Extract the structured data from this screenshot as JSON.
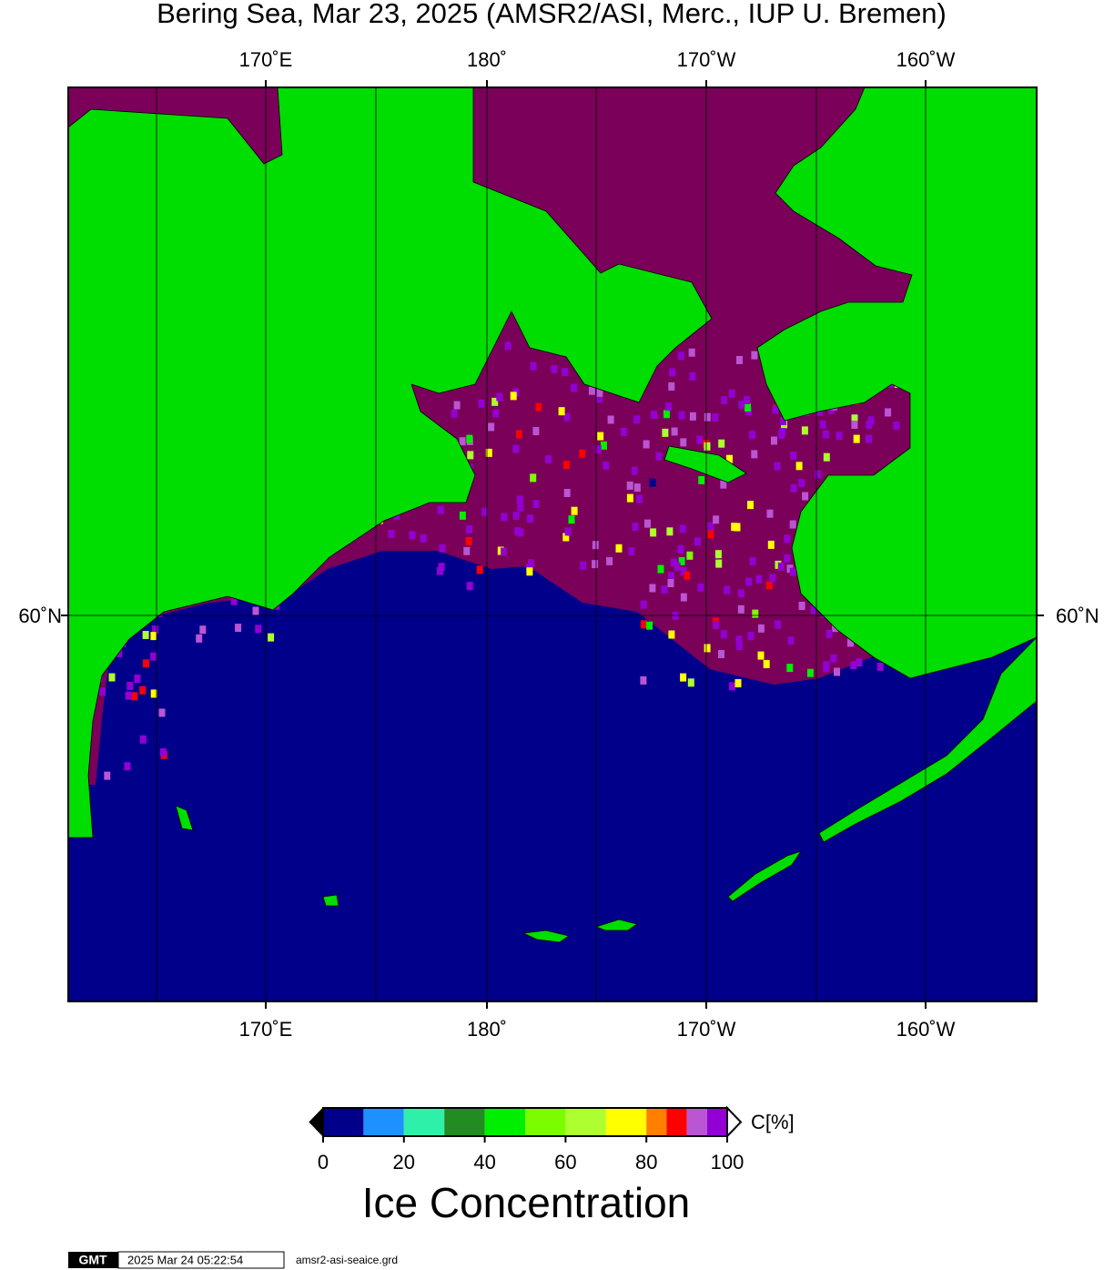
{
  "title": "Bering Sea, Mar 23, 2025 (AMSR2/ASI, Merc., IUP U. Bremen)",
  "longitude_labels": [
    "170˚E",
    "180˚",
    "170˚W",
    "160˚W"
  ],
  "latitude_labels": [
    "60˚N"
  ],
  "colorbar": {
    "unit": "C[%]",
    "range": [
      0,
      100
    ],
    "ticks": [
      0,
      20,
      40,
      60,
      80,
      100
    ],
    "bounds": [
      0,
      10,
      20,
      30,
      40,
      50,
      60,
      70,
      80,
      85,
      90,
      95,
      100
    ],
    "colors": [
      "#00008b",
      "#1e90ff",
      "#2ef0a8",
      "#228b22",
      "#00ee00",
      "#7cfc00",
      "#adff2f",
      "#ffff00",
      "#ff7f00",
      "#ff0000",
      "#ba55d3",
      "#9400d3"
    ],
    "label": "Ice Concentration"
  },
  "footer": {
    "logo": "GMT",
    "timestamp": "2025 Mar 24 05:22:54",
    "file": "amsr2-asi-seaice.grd"
  }
}
